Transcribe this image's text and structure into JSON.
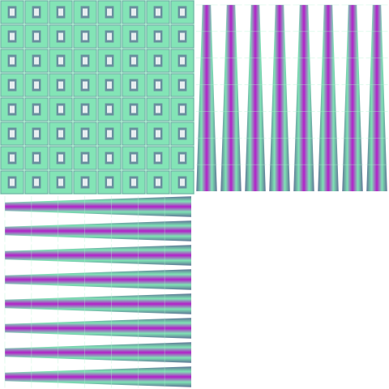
{
  "palette": {
    "mint": "#7fe3b4",
    "mint_light": "#aef4d0",
    "magenta": "#b31fc9",
    "violet": "#8a3fb0",
    "slate": "#5f7396",
    "white": "#ffffff"
  },
  "panels": [
    {
      "name": "checker-pattern-panel",
      "pattern": "grid-tiles"
    },
    {
      "name": "vertical-stripe-panel",
      "pattern": "vertical-tapered-stripes"
    },
    {
      "name": "horizontal-stripe-panel",
      "pattern": "horizontal-tapered-stripes"
    },
    {
      "name": "blank-panel",
      "pattern": "empty"
    }
  ]
}
